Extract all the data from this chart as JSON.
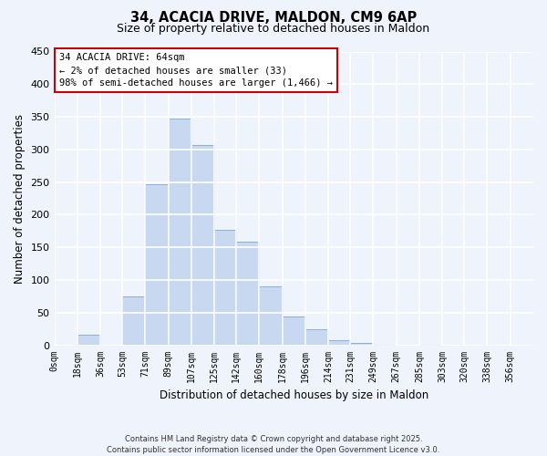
{
  "title1": "34, ACACIA DRIVE, MALDON, CM9 6AP",
  "title2": "Size of property relative to detached houses in Maldon",
  "xlabel": "Distribution of detached houses by size in Maldon",
  "ylabel": "Number of detached properties",
  "bar_labels": [
    "0sqm",
    "18sqm",
    "36sqm",
    "53sqm",
    "71sqm",
    "89sqm",
    "107sqm",
    "125sqm",
    "142sqm",
    "160sqm",
    "178sqm",
    "196sqm",
    "214sqm",
    "231sqm",
    "249sqm",
    "267sqm",
    "285sqm",
    "303sqm",
    "320sqm",
    "338sqm",
    "356sqm"
  ],
  "bar_values": [
    0,
    16,
    0,
    75,
    247,
    347,
    307,
    177,
    158,
    90,
    44,
    25,
    8,
    3,
    1,
    0,
    1,
    0,
    0,
    0,
    0
  ],
  "bar_color": "#c8d8f0",
  "bar_edge_color": "#8ab0d8",
  "ylim": [
    0,
    450
  ],
  "yticks": [
    0,
    50,
    100,
    150,
    200,
    250,
    300,
    350,
    400,
    450
  ],
  "annotation_title": "34 ACACIA DRIVE: 64sqm",
  "annotation_line1": "← 2% of detached houses are smaller (33)",
  "annotation_line2": "98% of semi-detached houses are larger (1,466) →",
  "annotation_box_facecolor": "#ffffff",
  "annotation_box_edgecolor": "#cc0000",
  "footer1": "Contains HM Land Registry data © Crown copyright and database right 2025.",
  "footer2": "Contains public sector information licensed under the Open Government Licence v3.0.",
  "bg_color": "#eef3fc",
  "grid_color": "#ffffff"
}
